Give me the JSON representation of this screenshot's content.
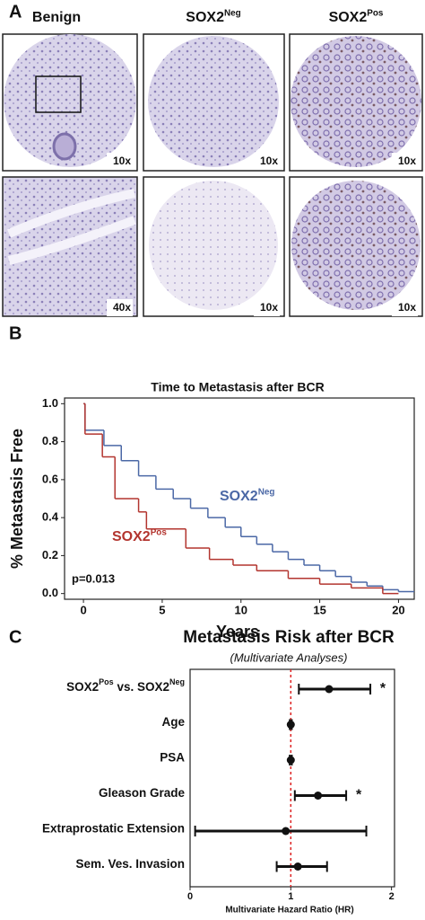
{
  "panel_a": {
    "label": "A",
    "columns": [
      {
        "title": "Benign"
      },
      {
        "title": "SOX2",
        "title_sup": "Neg"
      },
      {
        "title": "SOX2",
        "title_sup": "Pos"
      }
    ],
    "images": [
      "10x",
      "10x",
      "10x",
      "40x",
      "10x",
      "10x"
    ]
  },
  "panel_labels": [
    "B",
    "C"
  ],
  "chart_data": [
    {
      "type": "step",
      "title": "Time to Metastasis after BCR",
      "x_label": "Years",
      "y_label": "% Metastasis Free",
      "annotation": "p=0.013",
      "xlim": [
        -1.2,
        21
      ],
      "xticks": [
        0,
        5,
        10,
        15,
        20
      ],
      "ylim": [
        -0.03,
        1.03
      ],
      "yticks": [
        {
          "value": 0,
          "label": "0.0"
        },
        0.2,
        0.4,
        0.6,
        0.8,
        {
          "value": 1,
          "label": "1.0"
        }
      ],
      "series": [
        {
          "name": "SOX2",
          "name_sup": "Neg",
          "color": "#4b68a6",
          "x": [
            0,
            0.1,
            1.3,
            2.4,
            3.5,
            4.6,
            5.7,
            6.8,
            7.9,
            9,
            10,
            11,
            12,
            13,
            14,
            15,
            16,
            17,
            18,
            19,
            20,
            21
          ],
          "values": [
            1.0,
            0.86,
            0.78,
            0.7,
            0.62,
            0.55,
            0.5,
            0.45,
            0.4,
            0.35,
            0.3,
            0.26,
            0.22,
            0.18,
            0.15,
            0.12,
            0.09,
            0.06,
            0.04,
            0.02,
            0.01,
            0.01
          ]
        },
        {
          "name": "SOX2",
          "name_sup": "Pos",
          "color": "#b3352f",
          "x": [
            0,
            0.1,
            1.2,
            2,
            3.5,
            4,
            6.5,
            8,
            9.5,
            11,
            13,
            15,
            17,
            19,
            20
          ],
          "values": [
            1.0,
            0.84,
            0.72,
            0.5,
            0.43,
            0.34,
            0.24,
            0.18,
            0.15,
            0.12,
            0.08,
            0.05,
            0.03,
            0.0,
            0.0
          ]
        }
      ]
    },
    {
      "type": "forest",
      "title": "Metastasis Risk after BCR",
      "subtitle": "(Multivariate Analyses)",
      "x_label": "Multivariate Hazard Ratio (HR)",
      "xlim": [
        0,
        2.03
      ],
      "xticks": [
        0,
        1,
        2
      ],
      "reference_line": 1,
      "reference_color": "#d22",
      "color": "#111",
      "categories": [
        [
          {
            "text": "SOX2"
          },
          {
            "text": "Pos",
            "sup": true
          },
          {
            "text": " vs. SOX2"
          },
          {
            "text": "Neg",
            "sup": true
          }
        ],
        "Age",
        "PSA",
        "Gleason Grade",
        "Extraprostatic Extension",
        "Sem. Ves. Invasion"
      ],
      "values": [
        1.38,
        1.0,
        1.0,
        1.27,
        0.95,
        1.07
      ],
      "lower": [
        1.08,
        0.99,
        0.99,
        1.04,
        0.05,
        0.86
      ],
      "upper": [
        1.79,
        1.01,
        1.01,
        1.55,
        1.75,
        1.36
      ],
      "significance": [
        "*",
        null,
        null,
        "*",
        null,
        null
      ]
    }
  ]
}
